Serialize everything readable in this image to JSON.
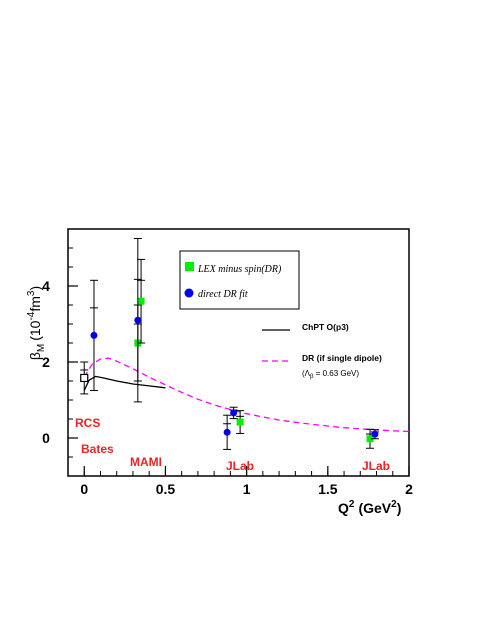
{
  "chart_data": {
    "type": "scatter",
    "xlabel": "Q",
    "xlabel_sup": "2",
    "xlabel_unit_open": "(GeV",
    "xlabel_unit_sup": "2",
    "xlabel_unit_close": ")",
    "ylabel_symbol": "β",
    "ylabel_sub": "M",
    "ylabel_unit_open": "(10",
    "ylabel_unit_sup1": "-4",
    "ylabel_unit_mid": "fm",
    "ylabel_unit_sup2": "3",
    "ylabel_unit_close": ")",
    "xlim": [
      -0.1,
      2.0
    ],
    "ylim": [
      -1.0,
      5.5
    ],
    "x_ticks": [
      0,
      0.5,
      1,
      1.5,
      2
    ],
    "x_tick_labels": [
      "0",
      "0.5",
      "1",
      "1.5",
      "2"
    ],
    "y_ticks": [
      0,
      2,
      4
    ],
    "y_tick_labels": [
      "0",
      "2",
      "4"
    ],
    "series": [
      {
        "name": "LEX minus spin(DR)",
        "color": "#00ee00",
        "marker": "square",
        "points": [
          {
            "x": 0.33,
            "y": 2.5,
            "yerr": 1.0
          },
          {
            "x": 0.35,
            "y": 3.6,
            "yerr": 1.1
          },
          {
            "x": 0.96,
            "y": 0.42,
            "yerr": 0.3
          },
          {
            "x": 1.76,
            "y": -0.02,
            "yerr": 0.25
          }
        ]
      },
      {
        "name": "direct DR fit",
        "color": "#0000ee",
        "marker": "circle",
        "points": [
          {
            "x": 0.06,
            "y": 2.7,
            "yerr": 1.45
          },
          {
            "x": 0.33,
            "y": 3.1,
            "yerr": 2.15
          },
          {
            "x": 0.88,
            "y": 0.15,
            "yerr": 0.45
          },
          {
            "x": 0.92,
            "y": 0.66,
            "yerr": 0.15
          },
          {
            "x": 1.79,
            "y": 0.1,
            "yerr": 0.12
          }
        ]
      },
      {
        "name": "RCS",
        "color": "#000000",
        "marker": "open-square",
        "points": [
          {
            "x": 0.0,
            "y": 1.58,
            "yerr": 0.42
          }
        ]
      }
    ],
    "curves": [
      {
        "name": "ChPT O(p3)",
        "color": "#000000",
        "dash": "solid",
        "points": [
          [
            0.0,
            1.25
          ],
          [
            0.03,
            1.52
          ],
          [
            0.07,
            1.62
          ],
          [
            0.12,
            1.58
          ],
          [
            0.2,
            1.5
          ],
          [
            0.3,
            1.42
          ],
          [
            0.4,
            1.37
          ],
          [
            0.5,
            1.32
          ]
        ]
      },
      {
        "name": "DR (if single dipole)",
        "sublabel": "(Λ",
        "sublabel_sub": "β",
        "sublabel_rest": " = 0.63 GeV)",
        "color": "#ff00ff",
        "dash": "dashed",
        "points": [
          [
            0.0,
            1.6
          ],
          [
            0.05,
            1.95
          ],
          [
            0.1,
            2.08
          ],
          [
            0.15,
            2.1
          ],
          [
            0.2,
            2.02
          ],
          [
            0.3,
            1.82
          ],
          [
            0.4,
            1.6
          ],
          [
            0.5,
            1.4
          ],
          [
            0.6,
            1.2
          ],
          [
            0.7,
            1.02
          ],
          [
            0.8,
            0.87
          ],
          [
            0.9,
            0.75
          ],
          [
            1.0,
            0.64
          ],
          [
            1.2,
            0.47
          ],
          [
            1.4,
            0.36
          ],
          [
            1.6,
            0.27
          ],
          [
            1.8,
            0.21
          ],
          [
            2.0,
            0.17
          ]
        ]
      }
    ],
    "experiments": [
      {
        "label": "RCS",
        "color": "#ee2222"
      },
      {
        "label": "Bates",
        "color": "#ee2222"
      },
      {
        "label": "MAMI",
        "color": "#ee2222"
      },
      {
        "label": "JLab",
        "color": "#ee2222"
      },
      {
        "label": "JLab",
        "color": "#ee2222"
      }
    ]
  }
}
